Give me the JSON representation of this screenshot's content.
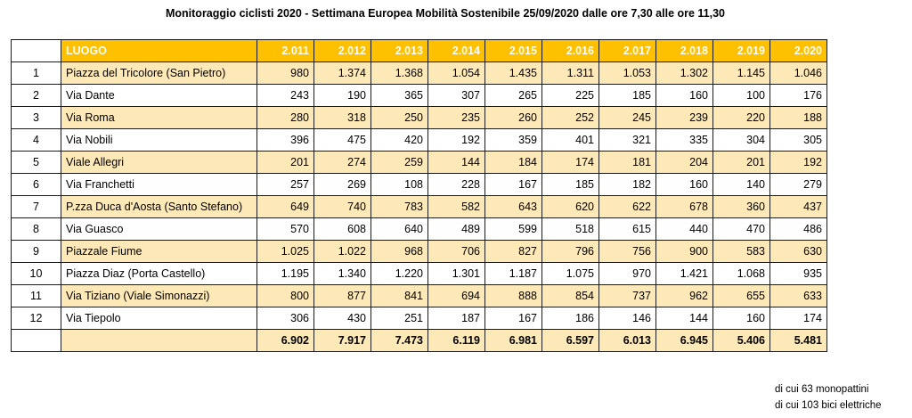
{
  "title": "Monitoraggio ciclisti 2020 - Settimana Europea Mobilità Sostenibile 25/09/2020 dalle ore 7,30 alle ore 11,30",
  "header": {
    "location_label": "LUOGO",
    "years": [
      "2.011",
      "2.012",
      "2.013",
      "2.014",
      "2.015",
      "2.016",
      "2.017",
      "2.018",
      "2.019",
      "2.020"
    ]
  },
  "rows": [
    {
      "n": "1",
      "place": "Piazza del Tricolore (San Pietro)",
      "values": [
        "980",
        "1.374",
        "1.368",
        "1.054",
        "1.435",
        "1.311",
        "1.053",
        "1.302",
        "1.145",
        "1.046"
      ]
    },
    {
      "n": "2",
      "place": "Via Dante",
      "values": [
        "243",
        "190",
        "365",
        "307",
        "265",
        "225",
        "185",
        "160",
        "100",
        "176"
      ]
    },
    {
      "n": "3",
      "place": "Via Roma",
      "values": [
        "280",
        "318",
        "250",
        "235",
        "260",
        "252",
        "245",
        "239",
        "220",
        "188"
      ]
    },
    {
      "n": "4",
      "place": "Via Nobili",
      "values": [
        "396",
        "475",
        "420",
        "192",
        "359",
        "401",
        "321",
        "335",
        "304",
        "305"
      ]
    },
    {
      "n": "5",
      "place": "Viale Allegri",
      "values": [
        "201",
        "274",
        "259",
        "144",
        "184",
        "174",
        "181",
        "204",
        "201",
        "192"
      ]
    },
    {
      "n": "6",
      "place": "Via Franchetti",
      "values": [
        "257",
        "269",
        "108",
        "228",
        "167",
        "185",
        "182",
        "160",
        "140",
        "279"
      ]
    },
    {
      "n": "7",
      "place": "P.zza Duca d'Aosta (Santo Stefano)",
      "values": [
        "649",
        "740",
        "783",
        "582",
        "643",
        "620",
        "622",
        "678",
        "360",
        "437"
      ]
    },
    {
      "n": "8",
      "place": "Via Guasco",
      "values": [
        "570",
        "608",
        "640",
        "489",
        "599",
        "518",
        "615",
        "440",
        "470",
        "486"
      ]
    },
    {
      "n": "9",
      "place": "Piazzale Fiume",
      "values": [
        "1.025",
        "1.022",
        "968",
        "706",
        "827",
        "796",
        "756",
        "900",
        "583",
        "630"
      ]
    },
    {
      "n": "10",
      "place": "Piazza Diaz (Porta Castello)",
      "values": [
        "1.195",
        "1.340",
        "1.220",
        "1.301",
        "1.187",
        "1.075",
        "970",
        "1.421",
        "1.068",
        "935"
      ]
    },
    {
      "n": "11",
      "place": "Via Tiziano (Viale Simonazzi)",
      "values": [
        "800",
        "877",
        "841",
        "694",
        "888",
        "854",
        "737",
        "962",
        "655",
        "633"
      ]
    },
    {
      "n": "12",
      "place": "Via Tiepolo",
      "values": [
        "306",
        "430",
        "251",
        "187",
        "167",
        "186",
        "146",
        "144",
        "160",
        "174"
      ]
    }
  ],
  "totals": [
    "6.902",
    "7.917",
    "7.473",
    "6.119",
    "6.981",
    "6.597",
    "6.013",
    "6.945",
    "5.406",
    "5.481"
  ],
  "notes": [
    "di cui 63 monopattini",
    "di cui 103 bici elettriche"
  ],
  "colors": {
    "header_fill": "#ffc000",
    "row_shade": "#fde9b8"
  }
}
